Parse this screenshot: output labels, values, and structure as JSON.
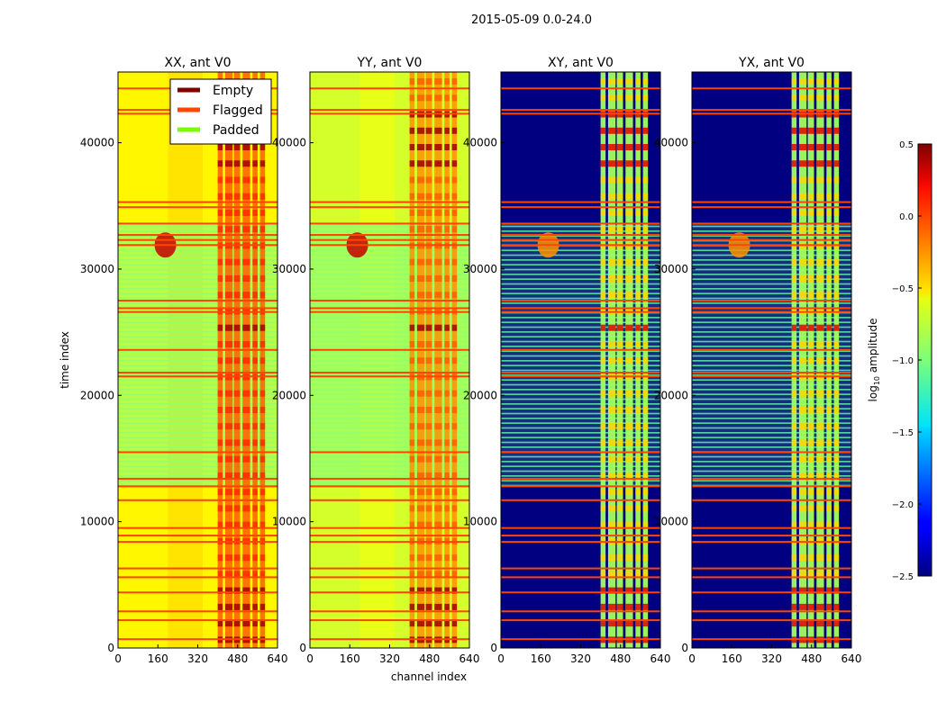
{
  "chart_data": {
    "type": "heatmap",
    "suptitle": "2015-05-09 0.0-24.0",
    "xlabel": "channel index",
    "ylabel": "time index",
    "xlim": [
      0,
      640
    ],
    "ylim": [
      0,
      45600
    ],
    "xticks": [
      0,
      160,
      320,
      480,
      640
    ],
    "yticks": [
      0,
      10000,
      20000,
      30000,
      40000
    ],
    "panels": [
      {
        "title": "XX, ant V0",
        "kind": "auto",
        "base_value": -0.6
      },
      {
        "title": "YY, ant V0",
        "kind": "auto",
        "base_value": -0.75
      },
      {
        "title": "XY, ant V0",
        "kind": "cross",
        "base_value": -2.5
      },
      {
        "title": "YX, ant V0",
        "kind": "cross",
        "base_value": -2.5
      }
    ],
    "legend": {
      "location": "upper-right of first panel",
      "entries": [
        {
          "label": "Empty",
          "color": "#800000"
        },
        {
          "label": "Flagged",
          "color": "#ff4500"
        },
        {
          "label": "Padded",
          "color": "#7cfc00"
        }
      ]
    },
    "colorbar": {
      "label": "log10 amplitude",
      "label_main": "log",
      "label_sub": "10",
      "label_rest": " amplitude",
      "range": [
        -2.5,
        0.5
      ],
      "ticks": [
        0.5,
        0.0,
        -0.5,
        -1.0,
        -1.5,
        -2.0,
        -2.5
      ],
      "tick_labels": [
        "0.5",
        "0.0",
        "−0.5",
        "−1.0",
        "−1.5",
        "−2.0",
        "−2.5"
      ],
      "colormap": "jet"
    },
    "active_channel_bands": [
      [
        400,
        420
      ],
      [
        430,
        460
      ],
      [
        465,
        490
      ],
      [
        500,
        530
      ],
      [
        540,
        560
      ],
      [
        570,
        590
      ]
    ],
    "flagged_time_rows": [
      700,
      2200,
      2900,
      4400,
      5600,
      6300,
      8400,
      8900,
      9500,
      11700,
      12800,
      13400,
      15500,
      21500,
      21800,
      23600,
      26600,
      26900,
      27500,
      31900,
      32300,
      32700,
      33600,
      34900,
      35300,
      42300,
      42600,
      44300
    ],
    "padded_time_range": [
      12800,
      33600
    ],
    "hot_spot": {
      "channel": 190,
      "time": 31900
    }
  }
}
